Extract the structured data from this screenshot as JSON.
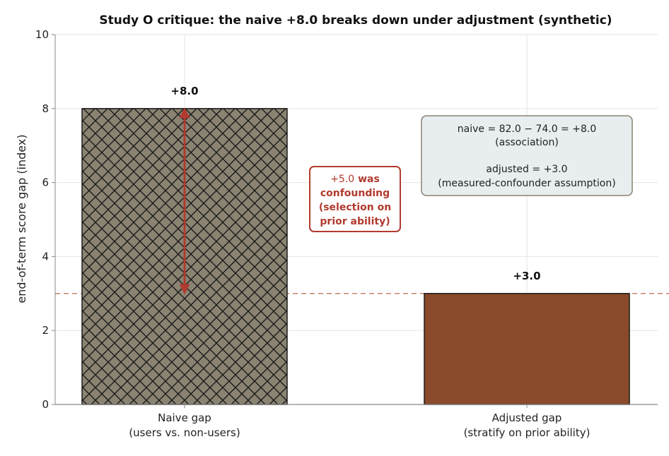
{
  "chart_data": {
    "type": "bar",
    "title": "Study O critique: the naive +8.0 breaks down under adjustment (synthetic)",
    "ylabel": "end-of-term score gap (index)",
    "xlabel": "",
    "ylim": [
      0,
      10
    ],
    "yticks": [
      0,
      2,
      4,
      6,
      8,
      10
    ],
    "grid": true,
    "categories": [
      [
        "Naive gap",
        "(users vs. non-users)"
      ],
      [
        "Adjusted gap",
        "(stratify on prior ability)"
      ]
    ],
    "values": [
      8.0,
      3.0
    ],
    "value_labels": [
      "+8.0",
      "+3.0"
    ],
    "bar_colors": [
      "#8a8372",
      "#8b4a2b"
    ],
    "bar_hatch": [
      "crosshatch",
      "none"
    ],
    "reference_line": {
      "value": 3.0,
      "style": "dashed",
      "color": "#c0785e"
    },
    "arrow": {
      "from": 8.0,
      "to": 3.0,
      "color": "#b23a2e"
    },
    "confounding_annotation": {
      "lines": [
        {
          "normal": "+5.0",
          "bold": " was"
        },
        {
          "normal": "",
          "bold": "confounding"
        },
        {
          "normal": "",
          "bold": "(selection on"
        },
        {
          "normal": "",
          "bold": "prior ability)"
        }
      ],
      "color": "#b23a2e"
    },
    "info_box": {
      "line1": "naive  = 82.0 − 74.0 = +8.0",
      "line2": "(association)",
      "line3": "adjusted  = +3.0",
      "line4": "(measured-confounder assumption)"
    }
  }
}
